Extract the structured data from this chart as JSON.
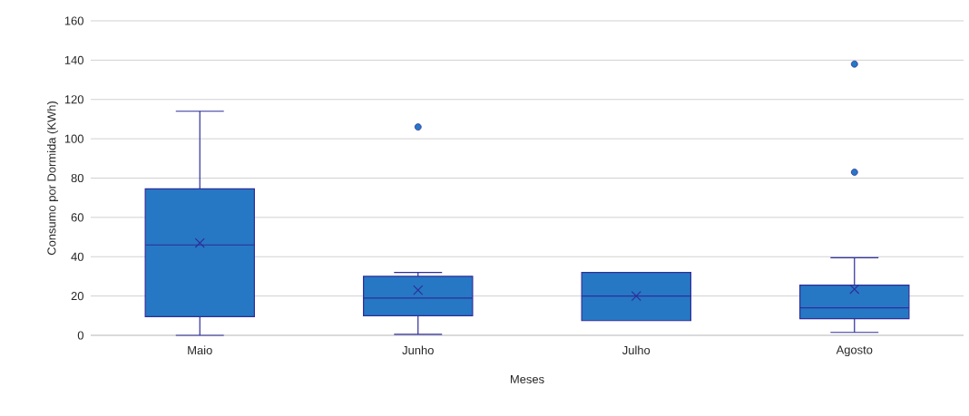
{
  "chart_data": {
    "type": "box",
    "xlabel": "Meses",
    "ylabel": "Consumo por Dormida (KWh)",
    "categories": [
      "Maio",
      "Junho",
      "Julho",
      "Agosto"
    ],
    "boxes": [
      {
        "low": 0,
        "q1": 9.5,
        "median": 46,
        "q3": 74.5,
        "high": 114,
        "mean": 47
      },
      {
        "low": 0.5,
        "q1": 10,
        "median": 19,
        "q3": 30,
        "high": 32,
        "mean": 23,
        "outliers": [
          106
        ]
      },
      {
        "low": 7.5,
        "q1": 7.5,
        "median": 20,
        "q3": 32,
        "high": 32,
        "mean": 20
      },
      {
        "low": 1.5,
        "q1": 8.5,
        "median": 14,
        "q3": 25.5,
        "high": 39.5,
        "mean": 23.5,
        "outliers": [
          83,
          138
        ]
      }
    ],
    "color": "#2678c4",
    "ylim": [
      0,
      160
    ],
    "yticks": [
      0,
      20,
      40,
      60,
      80,
      100,
      120,
      140,
      160
    ],
    "grid": "y"
  }
}
